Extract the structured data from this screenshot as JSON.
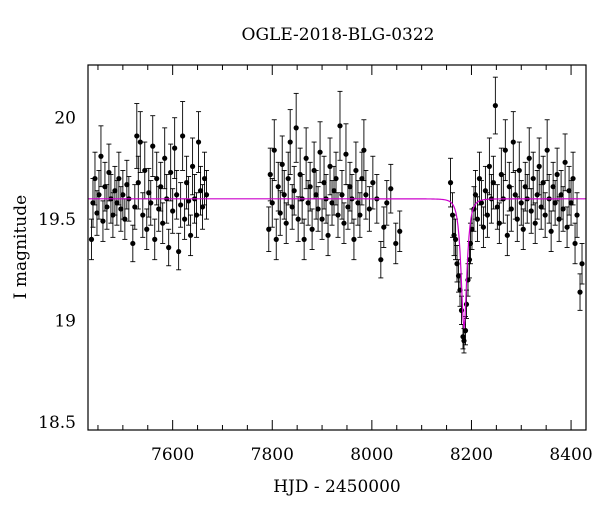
{
  "chart_data": {
    "type": "scatter",
    "title": "OGLE-2018-BLG-0322",
    "xlabel": "HJD - 2450000",
    "ylabel": "I magnitude",
    "xlim": [
      7430,
      8430
    ],
    "ylim": [
      20.26,
      18.46
    ],
    "y_inverted": true,
    "x_ticks": [
      7600,
      7800,
      8000,
      8200,
      8400
    ],
    "x_tick_labels": [
      "7600",
      "7800",
      "8000",
      "8200",
      "8400"
    ],
    "y_ticks": [
      18.5,
      19,
      19.5,
      20
    ],
    "y_tick_labels": [
      "18.5",
      "19",
      "19.5",
      "20"
    ],
    "grid": false,
    "colors": {
      "data": "#000000",
      "model": "#cc00cc"
    },
    "series": [
      {
        "kind": "points_with_errorbars",
        "points": [
          [
            7437,
            19.4,
            0.1
          ],
          [
            7440,
            19.58,
            0.12
          ],
          [
            7444,
            19.7,
            0.13
          ],
          [
            7448,
            19.53,
            0.11
          ],
          [
            7452,
            19.62,
            0.12
          ],
          [
            7456,
            19.81,
            0.15
          ],
          [
            7460,
            19.49,
            0.1
          ],
          [
            7464,
            19.66,
            0.12
          ],
          [
            7468,
            19.56,
            0.11
          ],
          [
            7472,
            19.73,
            0.14
          ],
          [
            7476,
            19.6,
            0.12
          ],
          [
            7480,
            19.52,
            0.11
          ],
          [
            7484,
            19.64,
            0.12
          ],
          [
            7488,
            19.58,
            0.11
          ],
          [
            7492,
            19.7,
            0.13
          ],
          [
            7496,
            19.55,
            0.11
          ],
          [
            7500,
            19.62,
            0.12
          ],
          [
            7504,
            19.5,
            0.1
          ],
          [
            7508,
            19.67,
            0.12
          ],
          [
            7512,
            19.6,
            0.11
          ],
          [
            7520,
            19.38,
            0.09
          ],
          [
            7524,
            19.56,
            0.11
          ],
          [
            7528,
            19.91,
            0.16
          ],
          [
            7531,
            19.68,
            0.13
          ],
          [
            7535,
            19.88,
            0.15
          ],
          [
            7540,
            19.52,
            0.11
          ],
          [
            7544,
            19.74,
            0.14
          ],
          [
            7548,
            19.45,
            0.1
          ],
          [
            7552,
            19.63,
            0.12
          ],
          [
            7556,
            19.58,
            0.11
          ],
          [
            7560,
            19.86,
            0.15
          ],
          [
            7564,
            19.4,
            0.1
          ],
          [
            7568,
            19.7,
            0.13
          ],
          [
            7572,
            19.55,
            0.11
          ],
          [
            7576,
            19.66,
            0.12
          ],
          [
            7580,
            19.48,
            0.1
          ],
          [
            7584,
            19.8,
            0.15
          ],
          [
            7588,
            19.6,
            0.12
          ],
          [
            7592,
            19.36,
            0.09
          ],
          [
            7596,
            19.73,
            0.14
          ],
          [
            7600,
            19.54,
            0.11
          ],
          [
            7604,
            19.85,
            0.15
          ],
          [
            7608,
            19.62,
            0.12
          ],
          [
            7612,
            19.34,
            0.09
          ],
          [
            7616,
            19.57,
            0.11
          ],
          [
            7620,
            19.91,
            0.17
          ],
          [
            7624,
            19.5,
            0.1
          ],
          [
            7628,
            19.68,
            0.13
          ],
          [
            7632,
            19.59,
            0.12
          ],
          [
            7636,
            19.42,
            0.1
          ],
          [
            7640,
            19.76,
            0.14
          ],
          [
            7644,
            19.6,
            0.12
          ],
          [
            7648,
            19.52,
            0.11
          ],
          [
            7652,
            19.88,
            0.15
          ],
          [
            7656,
            19.64,
            0.12
          ],
          [
            7660,
            19.56,
            0.11
          ],
          [
            7664,
            19.7,
            0.13
          ],
          [
            7668,
            19.62,
            0.12
          ],
          [
            7793,
            19.45,
            0.11
          ],
          [
            7796,
            19.72,
            0.13
          ],
          [
            7800,
            19.58,
            0.12
          ],
          [
            7804,
            19.84,
            0.15
          ],
          [
            7808,
            19.4,
            0.1
          ],
          [
            7812,
            19.66,
            0.12
          ],
          [
            7816,
            19.53,
            0.11
          ],
          [
            7820,
            19.77,
            0.14
          ],
          [
            7824,
            19.62,
            0.12
          ],
          [
            7828,
            19.48,
            0.1
          ],
          [
            7832,
            19.7,
            0.13
          ],
          [
            7836,
            19.88,
            0.16
          ],
          [
            7840,
            19.56,
            0.11
          ],
          [
            7844,
            19.64,
            0.12
          ],
          [
            7848,
            19.95,
            0.17
          ],
          [
            7852,
            19.5,
            0.11
          ],
          [
            7856,
            19.72,
            0.13
          ],
          [
            7860,
            19.6,
            0.12
          ],
          [
            7864,
            19.4,
            0.1
          ],
          [
            7868,
            19.8,
            0.15
          ],
          [
            7872,
            19.58,
            0.11
          ],
          [
            7876,
            19.66,
            0.12
          ],
          [
            7880,
            19.45,
            0.1
          ],
          [
            7884,
            19.74,
            0.14
          ],
          [
            7888,
            19.62,
            0.12
          ],
          [
            7892,
            19.55,
            0.11
          ],
          [
            7896,
            19.83,
            0.15
          ],
          [
            7900,
            19.5,
            0.1
          ],
          [
            7904,
            19.68,
            0.13
          ],
          [
            7908,
            19.6,
            0.12
          ],
          [
            7912,
            19.42,
            0.1
          ],
          [
            7916,
            19.76,
            0.14
          ],
          [
            7920,
            19.58,
            0.11
          ],
          [
            7924,
            19.64,
            0.12
          ],
          [
            7928,
            19.7,
            0.13
          ],
          [
            7932,
            19.52,
            0.11
          ],
          [
            7936,
            19.96,
            0.17
          ],
          [
            7940,
            19.62,
            0.12
          ],
          [
            7944,
            19.48,
            0.1
          ],
          [
            7948,
            19.82,
            0.15
          ],
          [
            7952,
            19.56,
            0.11
          ],
          [
            7956,
            19.66,
            0.12
          ],
          [
            7960,
            19.6,
            0.12
          ],
          [
            7964,
            19.4,
            0.1
          ],
          [
            7968,
            19.74,
            0.14
          ],
          [
            7972,
            19.58,
            0.11
          ],
          [
            7976,
            19.52,
            0.11
          ],
          [
            7980,
            19.7,
            0.13
          ],
          [
            7984,
            19.84,
            0.15
          ],
          [
            7988,
            19.62,
            0.12
          ],
          [
            7995,
            19.55,
            0.11
          ],
          [
            8002,
            19.68,
            0.13
          ],
          [
            8010,
            19.6,
            0.12
          ],
          [
            8018,
            19.3,
            0.09
          ],
          [
            8024,
            19.46,
            0.1
          ],
          [
            8030,
            19.58,
            0.11
          ],
          [
            8038,
            19.65,
            0.12
          ],
          [
            8048,
            19.38,
            0.1
          ],
          [
            8056,
            19.44,
            0.1
          ],
          [
            8158,
            19.68,
            0.12
          ],
          [
            8162,
            19.52,
            0.11
          ],
          [
            8165,
            19.42,
            0.1
          ],
          [
            8168,
            19.4,
            0.1
          ],
          [
            8171,
            19.28,
            0.09
          ],
          [
            8174,
            19.22,
            0.08
          ],
          [
            8177,
            19.15,
            0.08
          ],
          [
            8180,
            19.05,
            0.07
          ],
          [
            8183,
            18.92,
            0.06
          ],
          [
            8185,
            18.9,
            0.06
          ],
          [
            8188,
            18.95,
            0.07
          ],
          [
            8190,
            19.08,
            0.07
          ],
          [
            8193,
            19.2,
            0.08
          ],
          [
            8196,
            19.3,
            0.09
          ],
          [
            8198,
            19.38,
            0.1
          ],
          [
            8201,
            19.45,
            0.1
          ],
          [
            8205,
            19.55,
            0.11
          ],
          [
            8208,
            19.62,
            0.12
          ],
          [
            8212,
            19.5,
            0.11
          ],
          [
            8216,
            19.7,
            0.13
          ],
          [
            8220,
            19.58,
            0.11
          ],
          [
            8224,
            19.46,
            0.1
          ],
          [
            8228,
            19.64,
            0.12
          ],
          [
            8232,
            19.52,
            0.11
          ],
          [
            8236,
            19.76,
            0.14
          ],
          [
            8240,
            19.6,
            0.12
          ],
          [
            8244,
            19.68,
            0.13
          ],
          [
            8248,
            20.06,
            0.14
          ],
          [
            8252,
            19.56,
            0.11
          ],
          [
            8256,
            19.48,
            0.1
          ],
          [
            8260,
            19.72,
            0.13
          ],
          [
            8264,
            19.6,
            0.12
          ],
          [
            8268,
            19.84,
            0.15
          ],
          [
            8272,
            19.42,
            0.1
          ],
          [
            8276,
            19.66,
            0.12
          ],
          [
            8280,
            19.55,
            0.11
          ],
          [
            8284,
            19.88,
            0.15
          ],
          [
            8288,
            19.62,
            0.12
          ],
          [
            8292,
            19.5,
            0.11
          ],
          [
            8296,
            19.74,
            0.14
          ],
          [
            8300,
            19.58,
            0.11
          ],
          [
            8304,
            19.45,
            0.1
          ],
          [
            8308,
            19.66,
            0.12
          ],
          [
            8312,
            19.6,
            0.12
          ],
          [
            8316,
            19.8,
            0.15
          ],
          [
            8320,
            19.54,
            0.11
          ],
          [
            8324,
            19.7,
            0.13
          ],
          [
            8328,
            19.48,
            0.1
          ],
          [
            8332,
            19.62,
            0.12
          ],
          [
            8336,
            19.76,
            0.14
          ],
          [
            8340,
            19.56,
            0.11
          ],
          [
            8344,
            19.68,
            0.13
          ],
          [
            8348,
            19.52,
            0.11
          ],
          [
            8352,
            19.84,
            0.15
          ],
          [
            8356,
            19.6,
            0.12
          ],
          [
            8360,
            19.44,
            0.1
          ],
          [
            8364,
            19.66,
            0.12
          ],
          [
            8368,
            19.58,
            0.11
          ],
          [
            8372,
            19.72,
            0.13
          ],
          [
            8376,
            19.5,
            0.11
          ],
          [
            8380,
            19.62,
            0.12
          ],
          [
            8384,
            19.55,
            0.11
          ],
          [
            8388,
            19.78,
            0.14
          ],
          [
            8392,
            19.46,
            0.1
          ],
          [
            8396,
            19.64,
            0.12
          ],
          [
            8400,
            19.58,
            0.11
          ],
          [
            8404,
            19.7,
            0.13
          ],
          [
            8408,
            19.38,
            0.1
          ],
          [
            8412,
            19.52,
            0.11
          ],
          [
            8418,
            19.14,
            0.09
          ],
          [
            8422,
            19.28,
            0.1
          ]
        ]
      },
      {
        "kind": "model_curve",
        "baseline": 19.6,
        "peak_x": 8185,
        "peak_mag": 18.96,
        "tE_days": 9
      }
    ]
  }
}
